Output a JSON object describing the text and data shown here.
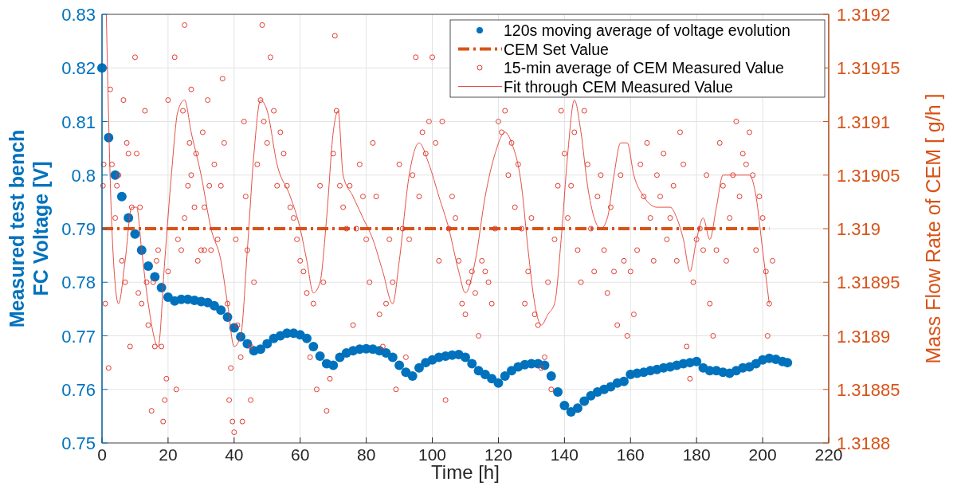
{
  "chart_data": {
    "type": "scatter",
    "xlabel": "Time [h]",
    "ylabel": "Measured test bench\nFC Voltage [V]",
    "y2label": "Mass Flow Rate of CEM [ g/h ]",
    "xlim": [
      0,
      220
    ],
    "xticks": [
      0,
      20,
      40,
      60,
      80,
      100,
      120,
      140,
      160,
      180,
      200,
      220
    ],
    "ylim": [
      0.75,
      0.83
    ],
    "yticks": [
      0.75,
      0.76,
      0.77,
      0.78,
      0.79,
      0.8,
      0.81,
      0.82,
      0.83
    ],
    "y2lim": [
      1.3188,
      1.3192
    ],
    "y2ticks": [
      1.3188,
      1.31885,
      1.3189,
      1.31895,
      1.319,
      1.31905,
      1.3191,
      1.31915,
      1.3192
    ],
    "grid": true,
    "legend": "top right",
    "series": [
      {
        "name": "120s moving average of voltage evolution",
        "color": "#0072bd",
        "x": [
          0,
          2,
          4,
          6,
          8,
          10,
          12,
          14,
          16,
          18,
          20,
          22,
          24,
          26,
          28,
          30,
          32,
          34,
          36,
          38,
          40,
          42,
          44,
          46,
          48,
          50,
          52,
          54,
          56,
          58,
          60,
          62,
          64,
          66,
          68,
          70,
          72,
          74,
          76,
          78,
          80,
          82,
          84,
          86,
          88,
          90,
          92,
          94,
          96,
          98,
          100,
          102,
          104,
          106,
          108,
          110,
          112,
          114,
          116,
          118,
          120,
          122,
          124,
          126,
          128,
          130,
          132,
          134,
          136,
          138,
          140,
          142,
          144,
          146,
          148,
          150,
          152,
          154,
          156,
          158,
          160,
          162,
          164,
          166,
          168,
          170,
          172,
          174,
          176,
          178,
          180,
          182,
          184,
          186,
          188,
          190,
          192,
          194,
          196,
          198,
          200,
          202,
          204,
          206,
          207.5
        ],
        "values": [
          0.82,
          0.807,
          0.8,
          0.796,
          0.792,
          0.789,
          0.786,
          0.783,
          0.781,
          0.779,
          0.7772,
          0.7765,
          0.7768,
          0.7768,
          0.7766,
          0.7764,
          0.7762,
          0.7756,
          0.7748,
          0.7735,
          0.7715,
          0.7698,
          0.7685,
          0.7672,
          0.7675,
          0.7685,
          0.7695,
          0.77,
          0.7705,
          0.7705,
          0.7702,
          0.7695,
          0.768,
          0.7662,
          0.7648,
          0.7645,
          0.766,
          0.7668,
          0.7672,
          0.7675,
          0.7676,
          0.7675,
          0.7672,
          0.7668,
          0.766,
          0.7645,
          0.7632,
          0.7625,
          0.764,
          0.765,
          0.7655,
          0.766,
          0.7662,
          0.7664,
          0.7665,
          0.766,
          0.7648,
          0.7635,
          0.7628,
          0.762,
          0.7612,
          0.7625,
          0.7635,
          0.7642,
          0.7646,
          0.7648,
          0.7648,
          0.7645,
          0.7625,
          0.7595,
          0.757,
          0.7558,
          0.7565,
          0.7578,
          0.7588,
          0.7595,
          0.76,
          0.7605,
          0.7612,
          0.7615,
          0.7628,
          0.763,
          0.7632,
          0.7635,
          0.7637,
          0.764,
          0.7642,
          0.7645,
          0.7648,
          0.765,
          0.7652,
          0.764,
          0.7635,
          0.7635,
          0.7632,
          0.763,
          0.7635,
          0.764,
          0.7642,
          0.7648,
          0.7655,
          0.7658,
          0.7656,
          0.7652,
          0.765
        ]
      },
      {
        "name": "CEM Set Value",
        "type": "line",
        "axis": "y2",
        "line_style": "dashed",
        "color": "#d95319",
        "x": [
          0,
          202
        ],
        "values": [
          1.319,
          1.319
        ]
      },
      {
        "name": "15-min average of CEM Measured Value",
        "axis": "y2",
        "color": "#e03c31",
        "x": [
          0.3,
          0.5,
          1,
          2,
          2.5,
          3,
          4,
          4.5,
          5,
          6,
          6.5,
          7,
          7.5,
          8,
          8.5,
          9,
          10,
          10.5,
          11,
          11.5,
          12,
          13,
          13.5,
          14,
          15,
          15.5,
          16,
          16.5,
          17,
          18,
          18.5,
          19,
          19.5,
          20,
          20,
          22,
          22.5,
          23,
          24,
          24.5,
          25,
          25,
          26,
          26.5,
          27,
          27,
          28,
          28.5,
          29,
          30,
          30.5,
          31,
          31,
          32,
          32.5,
          33,
          34,
          35,
          36,
          36.5,
          37,
          38,
          38.5,
          39,
          39.5,
          40,
          40.5,
          41,
          42,
          42.5,
          43,
          43.5,
          44,
          45,
          45,
          46,
          47,
          48,
          48.5,
          49,
          50,
          51,
          52,
          53,
          54,
          55,
          56,
          57,
          58,
          59,
          60,
          61,
          62,
          63,
          64,
          65,
          66,
          67,
          68,
          69,
          70,
          70.5,
          71,
          72,
          73,
          74,
          75,
          76,
          77,
          78,
          79,
          80,
          81,
          82,
          83,
          84,
          85,
          86,
          87,
          88,
          89,
          90,
          91,
          92,
          93,
          94,
          95,
          96,
          97,
          98,
          99,
          100,
          101,
          102,
          103,
          104,
          105,
          106,
          107,
          108,
          109,
          110,
          111,
          112,
          113,
          114,
          115,
          116,
          117,
          118,
          119,
          120,
          121,
          122,
          123,
          124,
          125,
          126,
          127,
          128,
          129,
          130,
          131,
          132,
          133,
          134,
          135,
          136,
          137,
          138,
          139,
          140,
          141,
          142,
          143,
          144,
          145,
          146,
          147,
          148,
          149,
          150,
          151,
          152,
          153,
          154,
          155,
          156,
          157,
          158,
          159,
          160,
          161,
          162,
          163,
          164,
          165,
          166,
          167,
          168,
          169,
          170,
          171,
          172,
          173,
          174,
          175,
          176,
          177,
          178,
          179,
          180,
          181,
          182,
          183,
          184,
          185,
          186,
          187,
          188,
          189,
          190,
          191,
          192,
          193,
          194,
          195,
          196,
          197,
          198,
          199,
          200,
          201,
          201.5,
          202,
          203
        ],
        "values": [
          1.31904,
          1.31906,
          1.31893,
          1.31887,
          1.31913,
          1.31906,
          1.31901,
          1.31904,
          1.31905,
          1.31897,
          1.31912,
          1.31895,
          1.31908,
          1.31907,
          1.31889,
          1.31902,
          1.31916,
          1.31907,
          1.31894,
          1.31902,
          1.31893,
          1.31911,
          1.31895,
          1.31891,
          1.31883,
          1.31895,
          1.31889,
          1.31897,
          1.31898,
          1.31889,
          1.31882,
          1.31884,
          1.31886,
          1.31912,
          1.31896,
          1.31916,
          1.31885,
          1.31899,
          1.31898,
          1.31911,
          1.31919,
          1.31901,
          1.31904,
          1.31908,
          1.31913,
          1.31905,
          1.31902,
          1.31907,
          1.31897,
          1.31898,
          1.31909,
          1.31902,
          1.31898,
          1.31912,
          1.31904,
          1.31898,
          1.31906,
          1.31899,
          1.31904,
          1.31914,
          1.31908,
          1.31893,
          1.31884,
          1.31887,
          1.31882,
          1.31881,
          1.31899,
          1.31891,
          1.31888,
          1.31882,
          1.3191,
          1.31903,
          1.31898,
          1.31889,
          1.31884,
          1.31895,
          1.31906,
          1.31912,
          1.31919,
          1.3191,
          1.31908,
          1.31916,
          1.31911,
          1.31904,
          1.31909,
          1.31907,
          1.31904,
          1.31902,
          1.31901,
          1.31899,
          1.31897,
          1.31896,
          1.31894,
          1.31888,
          1.31893,
          1.31885,
          1.31904,
          1.31895,
          1.31883,
          1.31886,
          1.31907,
          1.31918,
          1.31911,
          1.31904,
          1.31902,
          1.319,
          1.31904,
          1.31891,
          1.319,
          1.31906,
          1.31903,
          1.31899,
          1.31895,
          1.31908,
          1.31903,
          1.31892,
          1.31889,
          1.31893,
          1.31899,
          1.31895,
          1.31885,
          1.31906,
          1.319,
          1.31888,
          1.31899,
          1.31905,
          1.31916,
          1.31903,
          1.31909,
          1.31907,
          1.3191,
          1.31916,
          1.31908,
          1.31897,
          1.3191,
          1.31884,
          1.319,
          1.31903,
          1.31901,
          1.31897,
          1.31893,
          1.31892,
          1.31895,
          1.31896,
          1.31894,
          1.3189,
          1.31897,
          1.31896,
          1.31895,
          1.31893,
          1.319,
          1.3191,
          1.31909,
          1.31911,
          1.31905,
          1.31908,
          1.31902,
          1.31906,
          1.319,
          1.31893,
          1.31896,
          1.31901,
          1.31892,
          1.31891,
          1.31887,
          1.31888,
          1.31895,
          1.31885,
          1.31899,
          1.31904,
          1.31911,
          1.31907,
          1.31901,
          1.31904,
          1.31909,
          1.31898,
          1.31895,
          1.31911,
          1.31906,
          1.319,
          1.31896,
          1.31903,
          1.31905,
          1.31898,
          1.31894,
          1.31902,
          1.31896,
          1.31891,
          1.31905,
          1.31897,
          1.3189,
          1.31896,
          1.31892,
          1.31898,
          1.31906,
          1.31903,
          1.31908,
          1.31901,
          1.31897,
          1.31905,
          1.31903,
          1.31907,
          1.31899,
          1.31901,
          1.31904,
          1.31897,
          1.31909,
          1.31906,
          1.31889,
          1.31886,
          1.31895,
          1.31899,
          1.319,
          1.31898,
          1.31905,
          1.31893,
          1.3189,
          1.31898,
          1.31908,
          1.31904,
          1.31897,
          1.31901,
          1.31905,
          1.3191,
          1.31903,
          1.31907,
          1.31906,
          1.31909,
          1.31905,
          1.31898,
          1.31903,
          1.31901,
          1.31896,
          1.3189,
          1.31893,
          1.31897
        ]
      },
      {
        "name": "Fit through CEM Measured Value",
        "type": "line",
        "axis": "y2",
        "color": "#e03c31",
        "x": [
          1.3,
          3,
          5,
          7,
          9,
          10.5,
          12,
          14,
          17,
          19,
          21,
          23,
          25,
          27,
          30,
          33,
          36,
          38,
          40,
          42,
          44,
          46,
          48,
          50,
          53,
          57,
          60,
          62,
          64,
          66,
          68,
          70,
          71.5,
          73,
          76,
          79,
          82,
          85,
          88,
          90,
          93,
          96,
          99,
          102,
          105,
          108,
          110,
          113,
          116,
          119,
          122,
          124,
          127,
          129,
          131,
          133,
          135,
          137,
          139,
          141,
          143,
          145,
          147,
          149,
          151,
          153,
          155,
          157,
          159,
          161,
          164,
          168,
          172,
          174,
          176,
          178,
          180,
          182,
          184,
          186,
          188,
          191,
          194,
          196,
          198,
          200,
          202
        ],
        "values": [
          1.3192,
          1.319,
          1.31893,
          1.31897,
          1.31902,
          1.31902,
          1.31898,
          1.31893,
          1.31889,
          1.31897,
          1.31905,
          1.31911,
          1.31912,
          1.31909,
          1.31905,
          1.319,
          1.31897,
          1.31893,
          1.31889,
          1.3189,
          1.31898,
          1.31907,
          1.31912,
          1.31911,
          1.31906,
          1.31903,
          1.319,
          1.31897,
          1.31894,
          1.31895,
          1.31901,
          1.31909,
          1.31911,
          1.31905,
          1.31903,
          1.31901,
          1.31899,
          1.31896,
          1.31893,
          1.31897,
          1.31905,
          1.31908,
          1.31906,
          1.31903,
          1.319,
          1.31896,
          1.31894,
          1.31897,
          1.31903,
          1.31907,
          1.31909,
          1.31908,
          1.31904,
          1.31898,
          1.31893,
          1.31891,
          1.31892,
          1.31893,
          1.31899,
          1.31907,
          1.31912,
          1.31909,
          1.31904,
          1.31901,
          1.319,
          1.31901,
          1.31905,
          1.31908,
          1.31908,
          1.31905,
          1.31903,
          1.31902,
          1.31902,
          1.31901,
          1.31899,
          1.31896,
          1.31899,
          1.31901,
          1.31899,
          1.31902,
          1.31905,
          1.31905,
          1.31905,
          1.31905,
          1.31903,
          1.31898,
          1.31893
        ]
      }
    ]
  }
}
